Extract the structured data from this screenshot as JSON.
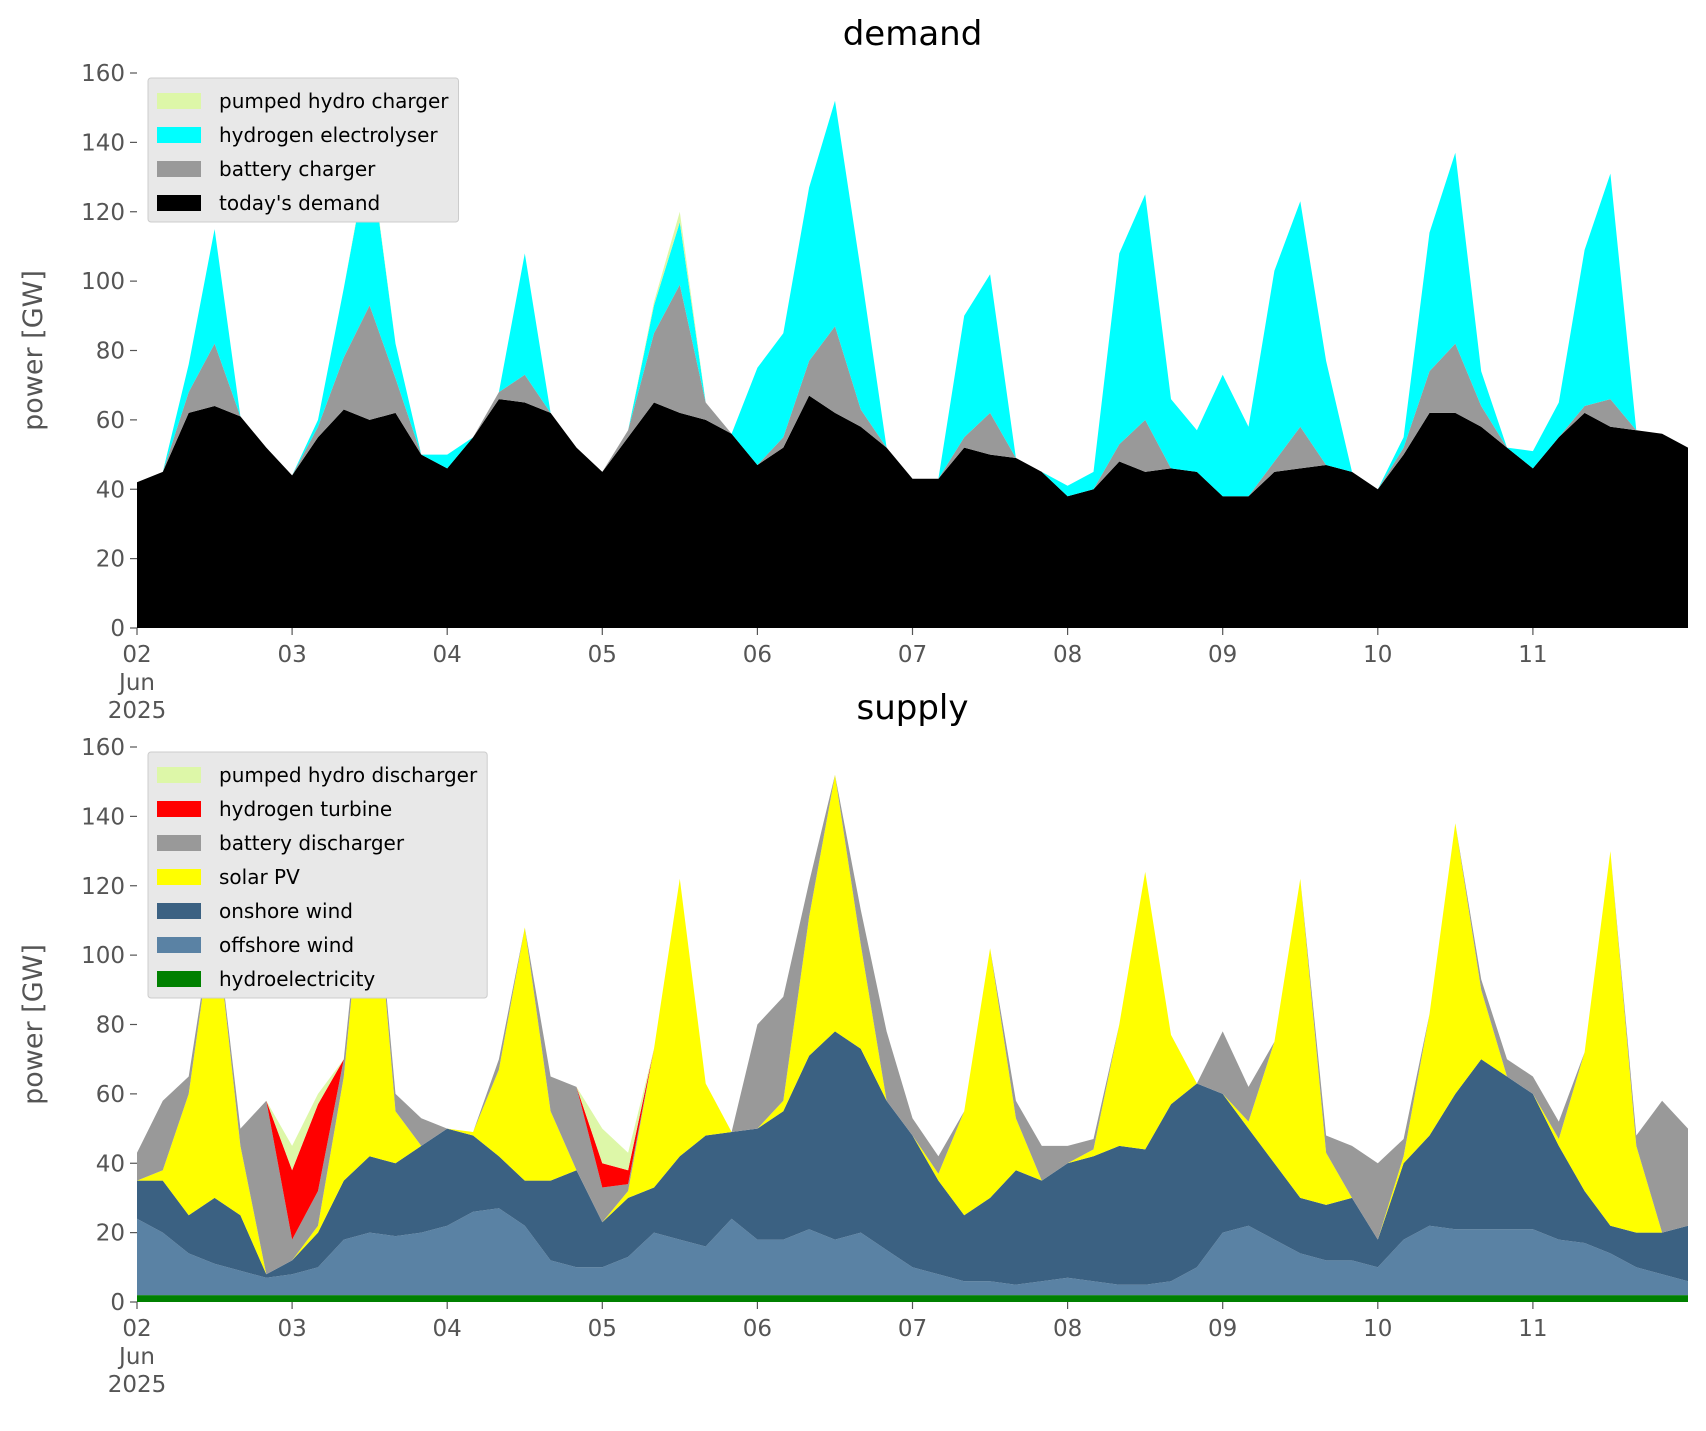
{
  "chart_data": [
    {
      "type": "area",
      "stacked": true,
      "title": "demand",
      "ylabel": "power [GW]",
      "legend": "upper left",
      "x": [
        "2025-06-02T00:00",
        "2025-06-02T04:00",
        "2025-06-02T08:00",
        "2025-06-02T12:00",
        "2025-06-02T16:00",
        "2025-06-02T20:00",
        "2025-06-03T00:00",
        "2025-06-03T04:00",
        "2025-06-03T08:00",
        "2025-06-03T12:00",
        "2025-06-03T16:00",
        "2025-06-03T20:00",
        "2025-06-04T00:00",
        "2025-06-04T04:00",
        "2025-06-04T08:00",
        "2025-06-04T12:00",
        "2025-06-04T16:00",
        "2025-06-04T20:00",
        "2025-06-05T00:00",
        "2025-06-05T04:00",
        "2025-06-05T08:00",
        "2025-06-05T12:00",
        "2025-06-05T16:00",
        "2025-06-05T20:00",
        "2025-06-06T00:00",
        "2025-06-06T04:00",
        "2025-06-06T08:00",
        "2025-06-06T12:00",
        "2025-06-06T16:00",
        "2025-06-06T20:00",
        "2025-06-07T00:00",
        "2025-06-07T04:00",
        "2025-06-07T08:00",
        "2025-06-07T12:00",
        "2025-06-07T16:00",
        "2025-06-07T20:00",
        "2025-06-08T00:00",
        "2025-06-08T04:00",
        "2025-06-08T08:00",
        "2025-06-08T12:00",
        "2025-06-08T16:00",
        "2025-06-08T20:00",
        "2025-06-09T00:00",
        "2025-06-09T04:00",
        "2025-06-09T08:00",
        "2025-06-09T12:00",
        "2025-06-09T16:00",
        "2025-06-09T20:00",
        "2025-06-10T00:00",
        "2025-06-10T04:00",
        "2025-06-10T08:00",
        "2025-06-10T12:00",
        "2025-06-10T16:00",
        "2025-06-10T20:00",
        "2025-06-11T00:00",
        "2025-06-11T04:00",
        "2025-06-11T08:00",
        "2025-06-11T12:00",
        "2025-06-11T16:00",
        "2025-06-11T20:00",
        "2025-06-12T00:00"
      ],
      "xlim": [
        "2025-06-02T00:00",
        "2025-06-12T00:00"
      ],
      "xticks": [
        {
          "value": "2025-06-02T00:00",
          "label": "02\nJun\n2025"
        },
        {
          "value": "2025-06-03T00:00",
          "label": "03"
        },
        {
          "value": "2025-06-04T00:00",
          "label": "04"
        },
        {
          "value": "2025-06-05T00:00",
          "label": "05"
        },
        {
          "value": "2025-06-06T00:00",
          "label": "06"
        },
        {
          "value": "2025-06-07T00:00",
          "label": "07"
        },
        {
          "value": "2025-06-08T00:00",
          "label": "08"
        },
        {
          "value": "2025-06-09T00:00",
          "label": "09"
        },
        {
          "value": "2025-06-10T00:00",
          "label": "10"
        },
        {
          "value": "2025-06-11T00:00",
          "label": "11"
        }
      ],
      "ylim": [
        0,
        160
      ],
      "yticks": [
        0,
        20,
        40,
        60,
        80,
        100,
        120,
        140,
        160
      ],
      "series": [
        {
          "name": "today's demand",
          "color": "#000000",
          "values": [
            42,
            45,
            62,
            64,
            61,
            52,
            44,
            55,
            63,
            60,
            62,
            50,
            46,
            55,
            66,
            65,
            62,
            52,
            45,
            55,
            65,
            62,
            60,
            56,
            47,
            52,
            67,
            62,
            58,
            52,
            43,
            43,
            52,
            50,
            49,
            45,
            38,
            40,
            48,
            45,
            46,
            45,
            38,
            38,
            45,
            46,
            47,
            45,
            40,
            50,
            62,
            62,
            58,
            52,
            46,
            55,
            62,
            58,
            57,
            56,
            52
          ]
        },
        {
          "name": "battery charger",
          "color": "#999999",
          "values": [
            0,
            0,
            6,
            18,
            0,
            0,
            0,
            3,
            15,
            33,
            10,
            0,
            0,
            0,
            2,
            8,
            0,
            0,
            0,
            2,
            20,
            37,
            5,
            0,
            0,
            3,
            10,
            25,
            5,
            0,
            0,
            0,
            3,
            12,
            0,
            0,
            0,
            0,
            5,
            15,
            0,
            0,
            0,
            0,
            3,
            12,
            0,
            0,
            0,
            2,
            12,
            20,
            6,
            0,
            0,
            0,
            2,
            8,
            0,
            0,
            0
          ]
        },
        {
          "name": "hydrogen electrolyser",
          "color": "#00ffff",
          "values": [
            0,
            0,
            8,
            33,
            0,
            0,
            0,
            2,
            20,
            45,
            10,
            0,
            4,
            0,
            0,
            35,
            0,
            0,
            0,
            0,
            8,
            18,
            0,
            0,
            28,
            30,
            50,
            65,
            40,
            0,
            0,
            0,
            35,
            40,
            0,
            0,
            3,
            5,
            55,
            65,
            20,
            12,
            35,
            20,
            55,
            65,
            30,
            0,
            0,
            3,
            40,
            55,
            10,
            0,
            5,
            10,
            45,
            65,
            0,
            0,
            0
          ]
        },
        {
          "name": "pumped hydro charger",
          "color": "#ddf7a8",
          "values": [
            0,
            0,
            0,
            0,
            0,
            0,
            0,
            0,
            0,
            1,
            0,
            0,
            0,
            0,
            0,
            0,
            0,
            0,
            0,
            0,
            1,
            3,
            0,
            0,
            0,
            0,
            0,
            0,
            0,
            0,
            0,
            0,
            0,
            0,
            0,
            0,
            0,
            0,
            0,
            0,
            0,
            0,
            0,
            0,
            0,
            0,
            0,
            0,
            0,
            0,
            0,
            0,
            0,
            0,
            0,
            0,
            0,
            0,
            0,
            0,
            0
          ]
        }
      ]
    },
    {
      "type": "area",
      "stacked": true,
      "title": "supply",
      "ylabel": "power [GW]",
      "legend": "upper left",
      "x": [
        "2025-06-02T00:00",
        "2025-06-02T04:00",
        "2025-06-02T08:00",
        "2025-06-02T12:00",
        "2025-06-02T16:00",
        "2025-06-02T20:00",
        "2025-06-03T00:00",
        "2025-06-03T04:00",
        "2025-06-03T08:00",
        "2025-06-03T12:00",
        "2025-06-03T16:00",
        "2025-06-03T20:00",
        "2025-06-04T00:00",
        "2025-06-04T04:00",
        "2025-06-04T08:00",
        "2025-06-04T12:00",
        "2025-06-04T16:00",
        "2025-06-04T20:00",
        "2025-06-05T00:00",
        "2025-06-05T04:00",
        "2025-06-05T08:00",
        "2025-06-05T12:00",
        "2025-06-05T16:00",
        "2025-06-05T20:00",
        "2025-06-06T00:00",
        "2025-06-06T04:00",
        "2025-06-06T08:00",
        "2025-06-06T12:00",
        "2025-06-06T16:00",
        "2025-06-06T20:00",
        "2025-06-07T00:00",
        "2025-06-07T04:00",
        "2025-06-07T08:00",
        "2025-06-07T12:00",
        "2025-06-07T16:00",
        "2025-06-07T20:00",
        "2025-06-08T00:00",
        "2025-06-08T04:00",
        "2025-06-08T08:00",
        "2025-06-08T12:00",
        "2025-06-08T16:00",
        "2025-06-08T20:00",
        "2025-06-09T00:00",
        "2025-06-09T04:00",
        "2025-06-09T08:00",
        "2025-06-09T12:00",
        "2025-06-09T16:00",
        "2025-06-09T20:00",
        "2025-06-10T00:00",
        "2025-06-10T04:00",
        "2025-06-10T08:00",
        "2025-06-10T12:00",
        "2025-06-10T16:00",
        "2025-06-10T20:00",
        "2025-06-11T00:00",
        "2025-06-11T04:00",
        "2025-06-11T08:00",
        "2025-06-11T12:00",
        "2025-06-11T16:00",
        "2025-06-11T20:00",
        "2025-06-12T00:00"
      ],
      "xlim": [
        "2025-06-02T00:00",
        "2025-06-12T00:00"
      ],
      "xticks": [
        {
          "value": "2025-06-02T00:00",
          "label": "02\nJun\n2025"
        },
        {
          "value": "2025-06-03T00:00",
          "label": "03"
        },
        {
          "value": "2025-06-04T00:00",
          "label": "04"
        },
        {
          "value": "2025-06-05T00:00",
          "label": "05"
        },
        {
          "value": "2025-06-06T00:00",
          "label": "06"
        },
        {
          "value": "2025-06-07T00:00",
          "label": "07"
        },
        {
          "value": "2025-06-08T00:00",
          "label": "08"
        },
        {
          "value": "2025-06-09T00:00",
          "label": "09"
        },
        {
          "value": "2025-06-10T00:00",
          "label": "10"
        },
        {
          "value": "2025-06-11T00:00",
          "label": "11"
        }
      ],
      "ylim": [
        0,
        160
      ],
      "yticks": [
        0,
        20,
        40,
        60,
        80,
        100,
        120,
        140,
        160
      ],
      "series": [
        {
          "name": "hydroelectricity",
          "color": "#008000",
          "values": [
            2,
            2,
            2,
            2,
            2,
            2,
            2,
            2,
            2,
            2,
            2,
            2,
            2,
            2,
            2,
            2,
            2,
            2,
            2,
            2,
            2,
            2,
            2,
            2,
            2,
            2,
            2,
            2,
            2,
            2,
            2,
            2,
            2,
            2,
            2,
            2,
            2,
            2,
            2,
            2,
            2,
            2,
            2,
            2,
            2,
            2,
            2,
            2,
            2,
            2,
            2,
            2,
            2,
            2,
            2,
            2,
            2,
            2,
            2,
            2,
            2
          ]
        },
        {
          "name": "offshore wind",
          "color": "#5a82a4",
          "values": [
            22,
            18,
            12,
            9,
            7,
            5,
            6,
            8,
            16,
            18,
            17,
            18,
            20,
            24,
            25,
            20,
            10,
            8,
            8,
            11,
            18,
            16,
            14,
            22,
            16,
            16,
            19,
            16,
            18,
            13,
            8,
            6,
            4,
            4,
            3,
            4,
            5,
            4,
            3,
            3,
            4,
            8,
            18,
            20,
            16,
            12,
            10,
            10,
            8,
            16,
            20,
            19,
            19,
            19,
            19,
            16,
            15,
            12,
            8,
            6,
            4
          ]
        },
        {
          "name": "onshore wind",
          "color": "#3b6182",
          "values": [
            11,
            15,
            11,
            19,
            16,
            1,
            4,
            10,
            17,
            22,
            21,
            25,
            28,
            22,
            15,
            13,
            23,
            28,
            13,
            17,
            13,
            24,
            32,
            25,
            32,
            37,
            50,
            60,
            53,
            43,
            38,
            27,
            19,
            24,
            33,
            29,
            33,
            36,
            40,
            39,
            51,
            53,
            40,
            28,
            22,
            16,
            16,
            18,
            8,
            22,
            26,
            39,
            49,
            44,
            39,
            27,
            15,
            8,
            10,
            12,
            16
          ]
        },
        {
          "name": "solar PV",
          "color": "#ffff00",
          "values": [
            0,
            3,
            35,
            83,
            20,
            0,
            0,
            2,
            30,
            100,
            15,
            0,
            0,
            1,
            25,
            73,
            20,
            0,
            0,
            2,
            40,
            80,
            15,
            0,
            0,
            3,
            40,
            74,
            30,
            0,
            0,
            2,
            30,
            72,
            15,
            0,
            0,
            2,
            35,
            80,
            20,
            0,
            0,
            2,
            35,
            92,
            15,
            0,
            0,
            2,
            35,
            78,
            20,
            0,
            0,
            2,
            40,
            108,
            25,
            0,
            0
          ]
        },
        {
          "name": "battery discharger",
          "color": "#999999",
          "values": [
            8,
            20,
            5,
            0,
            5,
            50,
            6,
            10,
            5,
            0,
            5,
            8,
            0,
            0,
            3,
            0,
            10,
            24,
            10,
            2,
            0,
            0,
            0,
            0,
            30,
            30,
            10,
            0,
            10,
            20,
            5,
            5,
            0,
            0,
            5,
            10,
            5,
            3,
            0,
            0,
            0,
            0,
            18,
            10,
            0,
            0,
            5,
            15,
            22,
            5,
            0,
            0,
            3,
            5,
            5,
            5,
            0,
            0,
            3,
            38,
            28
          ]
        },
        {
          "name": "hydrogen turbine",
          "color": "#ff0000",
          "values": [
            0,
            0,
            0,
            0,
            0,
            0,
            20,
            25,
            0,
            0,
            0,
            0,
            0,
            0,
            0,
            0,
            0,
            0,
            7,
            4,
            0,
            0,
            0,
            0,
            0,
            0,
            0,
            0,
            0,
            0,
            0,
            0,
            0,
            0,
            0,
            0,
            0,
            0,
            0,
            0,
            0,
            0,
            0,
            0,
            0,
            0,
            0,
            0,
            0,
            0,
            0,
            0,
            0,
            0,
            0,
            0,
            0,
            0,
            0,
            0,
            0
          ]
        },
        {
          "name": "pumped hydro discharger",
          "color": "#ddf7a8",
          "values": [
            0,
            0,
            0,
            0,
            0,
            0,
            7,
            3,
            0,
            0,
            0,
            0,
            0,
            0,
            0,
            0,
            0,
            0,
            10,
            5,
            0,
            0,
            0,
            0,
            0,
            0,
            0,
            0,
            0,
            0,
            0,
            0,
            0,
            0,
            0,
            0,
            0,
            0,
            0,
            0,
            0,
            0,
            0,
            0,
            0,
            0,
            0,
            0,
            0,
            0,
            0,
            0,
            0,
            0,
            0,
            0,
            0,
            0,
            0,
            0,
            0
          ]
        }
      ]
    }
  ]
}
